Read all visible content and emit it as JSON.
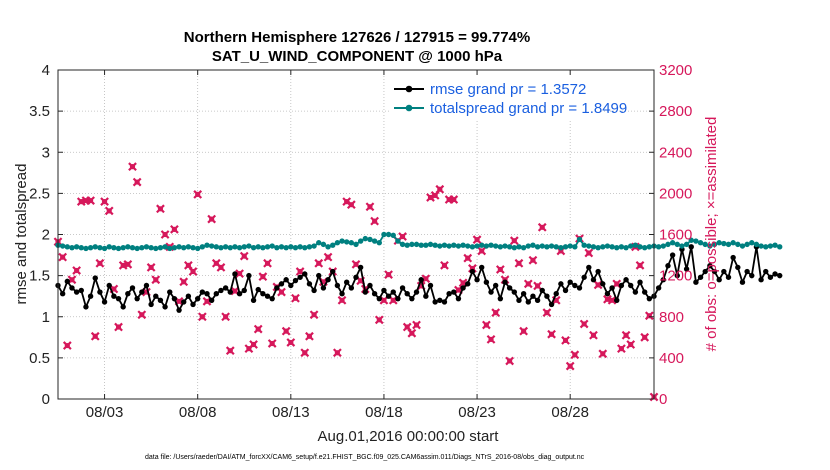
{
  "chart_data": {
    "type": "line",
    "title": "Northern Hemisphere 127626 / 127915 = 99.774%",
    "subtitle": "SAT_U_WIND_COMPONENT @ 1000 hPa",
    "xlabel": "Aug.01,2016 00:00:00 start",
    "ylabel": "rmse and totalspread",
    "ylabel_right": "# of obs: o=possible; ×=assimilated",
    "xlim": [
      0.5,
      32.5
    ],
    "ylim": [
      0,
      4
    ],
    "ylim_right": [
      0,
      3200
    ],
    "x_ticks": [
      3,
      8,
      13,
      18,
      23,
      28
    ],
    "x_tick_labels": [
      "08/03",
      "08/08",
      "08/13",
      "08/18",
      "08/23",
      "08/28"
    ],
    "y_ticks": [
      0,
      0.5,
      1,
      1.5,
      2,
      2.5,
      3,
      3.5,
      4
    ],
    "y_tick_labels": [
      "0",
      "0.5",
      "1",
      "1.5",
      "2",
      "2.5",
      "3",
      "3.5",
      "4"
    ],
    "y_right_ticks": [
      0,
      400,
      800,
      1200,
      1600,
      2000,
      2400,
      2800,
      3200
    ],
    "y_right_tick_labels": [
      "0",
      "400",
      "800",
      "1200",
      "1600",
      "2000",
      "2400",
      "2800",
      "3200"
    ],
    "legend_location": "top-right",
    "colors": {
      "rmse": "#000000",
      "spread": "#008080",
      "obs": "#d6185b",
      "legend_text": "#1a5fe0",
      "right_axis": "#d6185b"
    },
    "series": [
      {
        "name": "rmse grand pr = 1.3572",
        "color": "#000000",
        "x_start": 0.5,
        "x_step": 0.25,
        "values": [
          1.38,
          1.28,
          1.43,
          1.35,
          1.3,
          1.32,
          1.12,
          1.25,
          1.47,
          1.3,
          1.18,
          1.38,
          1.25,
          1.22,
          1.12,
          1.28,
          1.35,
          1.22,
          1.3,
          1.38,
          1.15,
          1.25,
          1.2,
          1.12,
          1.3,
          1.22,
          1.08,
          1.18,
          1.25,
          1.15,
          1.22,
          1.3,
          1.28,
          1.2,
          1.28,
          1.32,
          1.35,
          1.3,
          1.52,
          1.28,
          1.32,
          1.5,
          1.2,
          1.33,
          1.28,
          1.25,
          1.22,
          1.35,
          1.4,
          1.45,
          1.38,
          1.44,
          1.48,
          1.52,
          1.4,
          1.32,
          1.5,
          1.35,
          1.45,
          1.55,
          1.38,
          1.28,
          1.42,
          1.35,
          1.48,
          1.6,
          1.3,
          1.38,
          1.28,
          1.22,
          1.32,
          1.25,
          1.3,
          1.22,
          1.35,
          1.28,
          1.22,
          1.3,
          1.45,
          1.25,
          1.38,
          1.18,
          1.2,
          1.18,
          1.28,
          1.3,
          1.22,
          1.35,
          1.4,
          1.55,
          1.45,
          1.6,
          1.42,
          1.3,
          1.38,
          1.22,
          1.42,
          1.35,
          1.3,
          1.2,
          1.28,
          1.18,
          1.25,
          1.2,
          1.32,
          1.25,
          1.15,
          1.28,
          1.4,
          1.32,
          1.42,
          1.38,
          1.35,
          1.48,
          1.6,
          1.45,
          1.55,
          1.4,
          1.28,
          1.35,
          1.2,
          1.38,
          1.45,
          1.38,
          1.3,
          1.42,
          1.3,
          1.22,
          1.25,
          1.35,
          1.45,
          1.62,
          1.75,
          1.5,
          1.82,
          1.58,
          1.85,
          1.42,
          1.48,
          1.55,
          1.62,
          1.55,
          1.45,
          1.55,
          1.48,
          1.72,
          1.6,
          1.42,
          1.55,
          1.5,
          1.85,
          1.45,
          1.55,
          1.48,
          1.52,
          1.5
        ]
      },
      {
        "name": "totalspread grand pr = 1.8499",
        "color": "#008080",
        "x_start": 0.5,
        "x_step": 0.25,
        "values": [
          1.87,
          1.86,
          1.85,
          1.84,
          1.85,
          1.84,
          1.83,
          1.84,
          1.85,
          1.84,
          1.83,
          1.85,
          1.84,
          1.83,
          1.84,
          1.85,
          1.84,
          1.83,
          1.84,
          1.85,
          1.84,
          1.83,
          1.84,
          1.85,
          1.83,
          1.84,
          1.85,
          1.84,
          1.85,
          1.84,
          1.83,
          1.85,
          1.87,
          1.86,
          1.85,
          1.84,
          1.85,
          1.84,
          1.85,
          1.84,
          1.85,
          1.86,
          1.84,
          1.85,
          1.84,
          1.85,
          1.86,
          1.84,
          1.85,
          1.84,
          1.85,
          1.84,
          1.85,
          1.84,
          1.85,
          1.86,
          1.9,
          1.88,
          1.85,
          1.87,
          1.9,
          1.92,
          1.91,
          1.9,
          1.88,
          1.92,
          1.95,
          1.94,
          1.92,
          1.9,
          2.0,
          2.0,
          1.99,
          1.92,
          1.88,
          1.87,
          1.88,
          1.88,
          1.87,
          1.87,
          1.88,
          1.87,
          1.86,
          1.87,
          1.86,
          1.87,
          1.86,
          1.87,
          1.86,
          1.85,
          1.86,
          1.87,
          1.86,
          1.87,
          1.86,
          1.85,
          1.86,
          1.85,
          1.84,
          1.85,
          1.84,
          1.86,
          1.87,
          1.85,
          1.86,
          1.85,
          1.86,
          1.85,
          1.84,
          1.85,
          1.86,
          1.85,
          1.94,
          1.87,
          1.86,
          1.85,
          1.84,
          1.85,
          1.86,
          1.85,
          1.84,
          1.85,
          1.84,
          1.86,
          1.87,
          1.85,
          1.84,
          1.85,
          1.86,
          1.85,
          1.86,
          1.88,
          1.9,
          1.88,
          1.86,
          1.88,
          1.93,
          1.92,
          1.9,
          1.88,
          1.86,
          1.88,
          1.9,
          1.89,
          1.88,
          1.9,
          1.88,
          1.86,
          1.88,
          1.9,
          1.88,
          1.86,
          1.85,
          1.86,
          1.87,
          1.85
        ]
      }
    ],
    "obs_assimilated": {
      "name": "# of obs assimilated",
      "color": "#d6185b",
      "points": [
        [
          0.5,
          1530
        ],
        [
          0.75,
          1380
        ],
        [
          1.0,
          520
        ],
        [
          1.25,
          1160
        ],
        [
          1.5,
          1250
        ],
        [
          1.75,
          1920
        ],
        [
          2.0,
          1930
        ],
        [
          2.25,
          1930
        ],
        [
          2.5,
          610
        ],
        [
          2.75,
          1320
        ],
        [
          3.0,
          1920
        ],
        [
          3.25,
          1830
        ],
        [
          3.5,
          1070
        ],
        [
          3.75,
          700
        ],
        [
          4.0,
          1300
        ],
        [
          4.25,
          1310
        ],
        [
          4.5,
          2260
        ],
        [
          4.75,
          2110
        ],
        [
          5.0,
          820
        ],
        [
          5.25,
          1040
        ],
        [
          5.5,
          1280
        ],
        [
          5.75,
          1160
        ],
        [
          6.0,
          1850
        ],
        [
          6.25,
          1600
        ],
        [
          6.5,
          1480
        ],
        [
          6.75,
          1650
        ],
        [
          7.0,
          950
        ],
        [
          7.25,
          1140
        ],
        [
          7.5,
          1300
        ],
        [
          7.75,
          1240
        ],
        [
          8.0,
          1990
        ],
        [
          8.25,
          800
        ],
        [
          8.5,
          950
        ],
        [
          8.75,
          1750
        ],
        [
          9.0,
          1320
        ],
        [
          9.25,
          1280
        ],
        [
          9.5,
          800
        ],
        [
          9.75,
          470
        ],
        [
          10.0,
          1050
        ],
        [
          10.25,
          1220
        ],
        [
          10.5,
          1390
        ],
        [
          10.75,
          490
        ],
        [
          11.0,
          530
        ],
        [
          11.25,
          680
        ],
        [
          11.5,
          1190
        ],
        [
          11.75,
          1320
        ],
        [
          12.0,
          540
        ],
        [
          12.25,
          1090
        ],
        [
          12.5,
          1040
        ],
        [
          12.75,
          660
        ],
        [
          13.0,
          550
        ],
        [
          13.25,
          980
        ],
        [
          13.5,
          1240
        ],
        [
          13.75,
          450
        ],
        [
          14.0,
          610
        ],
        [
          14.25,
          820
        ],
        [
          14.5,
          1320
        ],
        [
          14.75,
          1140
        ],
        [
          15.0,
          1380
        ],
        [
          15.25,
          1240
        ],
        [
          15.5,
          450
        ],
        [
          15.75,
          960
        ],
        [
          16.0,
          1920
        ],
        [
          16.25,
          1890
        ],
        [
          16.5,
          1310
        ],
        [
          16.75,
          1150
        ],
        [
          17.0,
          1070
        ],
        [
          17.25,
          1870
        ],
        [
          17.5,
          1730
        ],
        [
          17.75,
          770
        ],
        [
          18.0,
          960
        ],
        [
          18.25,
          1210
        ],
        [
          18.5,
          960
        ],
        [
          18.75,
          1540
        ],
        [
          19.0,
          1580
        ],
        [
          19.25,
          700
        ],
        [
          19.5,
          640
        ],
        [
          19.75,
          720
        ],
        [
          20.0,
          1100
        ],
        [
          20.25,
          1170
        ],
        [
          20.5,
          1960
        ],
        [
          20.75,
          1980
        ],
        [
          21.0,
          2040
        ],
        [
          21.25,
          1300
        ],
        [
          21.5,
          1940
        ],
        [
          21.75,
          1940
        ],
        [
          22.0,
          1060
        ],
        [
          22.25,
          1130
        ],
        [
          22.5,
          1370
        ],
        [
          22.75,
          1270
        ],
        [
          23.0,
          1550
        ],
        [
          23.25,
          1440
        ],
        [
          23.5,
          720
        ],
        [
          23.75,
          580
        ],
        [
          24.0,
          840
        ],
        [
          24.25,
          1260
        ],
        [
          24.5,
          1160
        ],
        [
          24.75,
          370
        ],
        [
          25.0,
          1540
        ],
        [
          25.25,
          1320
        ],
        [
          25.5,
          660
        ],
        [
          25.75,
          1120
        ],
        [
          26.0,
          1350
        ],
        [
          26.25,
          1100
        ],
        [
          26.5,
          1670
        ],
        [
          26.75,
          840
        ],
        [
          27.0,
          630
        ],
        [
          27.25,
          960
        ],
        [
          27.5,
          1440
        ],
        [
          27.75,
          570
        ],
        [
          28.0,
          320
        ],
        [
          28.25,
          430
        ],
        [
          28.5,
          1560
        ],
        [
          28.75,
          730
        ],
        [
          29.0,
          1420
        ],
        [
          29.25,
          620
        ],
        [
          29.5,
          1110
        ],
        [
          29.75,
          440
        ],
        [
          30.0,
          970
        ],
        [
          30.25,
          960
        ],
        [
          30.5,
          1120
        ],
        [
          30.75,
          490
        ],
        [
          31.0,
          620
        ],
        [
          31.25,
          530
        ],
        [
          31.5,
          1480
        ],
        [
          31.75,
          1300
        ],
        [
          32.0,
          600
        ],
        [
          32.25,
          810
        ],
        [
          32.5,
          20
        ]
      ]
    }
  },
  "footer": "data file: /Users/raeder/DAI/ATM_forcXX/CAM6_setup/f.e21.FHIST_BGC.f09_025.CAM6assim.011/Diags_NTrS_2016-08/obs_diag_output.nc"
}
